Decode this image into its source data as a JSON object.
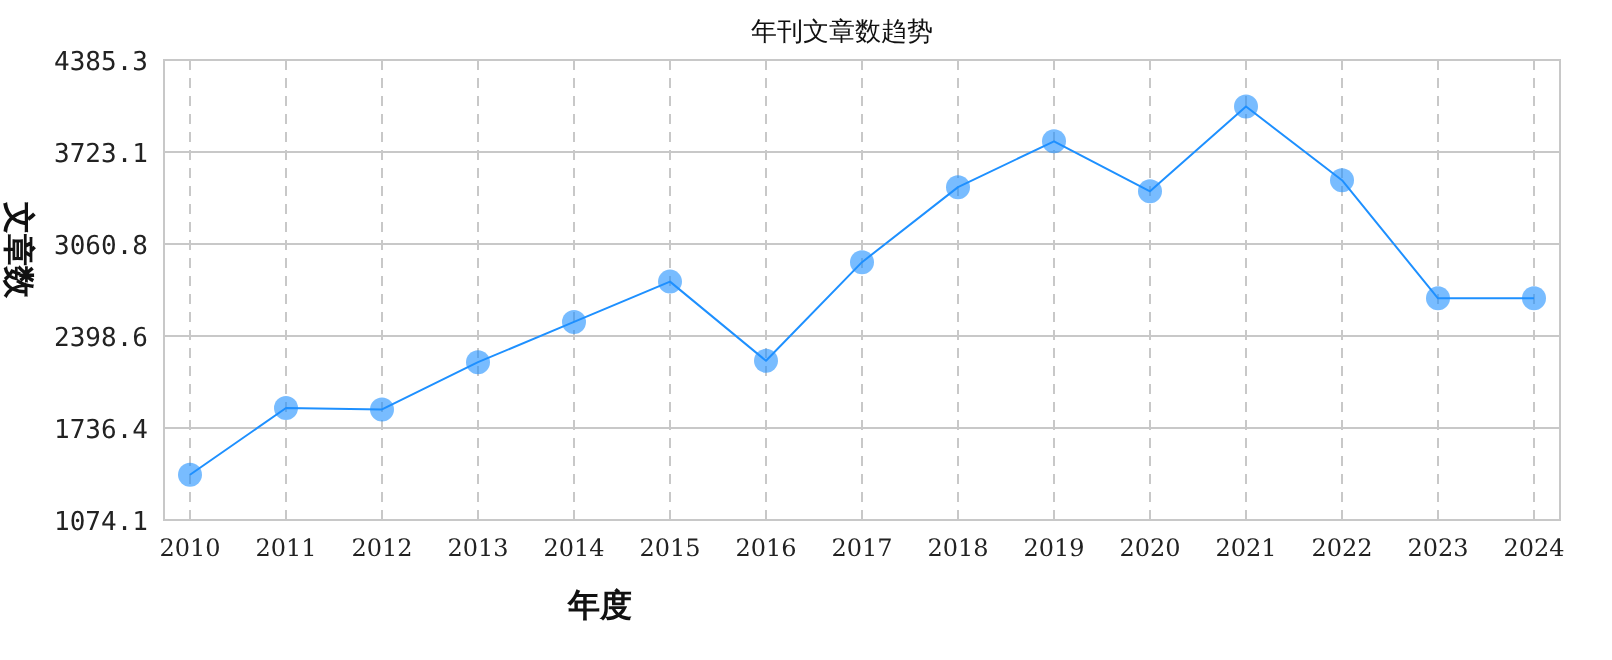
{
  "chart_data": {
    "type": "line",
    "title": "年刊文章数趋势",
    "xlabel": "年度",
    "ylabel": "文章数",
    "categories": [
      "2010",
      "2011",
      "2012",
      "2013",
      "2014",
      "2015",
      "2016",
      "2017",
      "2018",
      "2019",
      "2020",
      "2021",
      "2022",
      "2023",
      "2024"
    ],
    "series": [
      {
        "color": "#1e90ff",
        "values": [
          1400,
          1880,
          1870,
          2210,
          2500,
          2790,
          2220,
          2930,
          3470,
          3800,
          3440,
          4050,
          3520,
          2670,
          2670
        ]
      }
    ],
    "ylim": [
      1074.1,
      4385.3
    ],
    "yticks": [
      1074.1,
      1736.4,
      2398.6,
      3060.8,
      3723.1,
      4385.3
    ],
    "grid": true,
    "marker": "circle"
  }
}
